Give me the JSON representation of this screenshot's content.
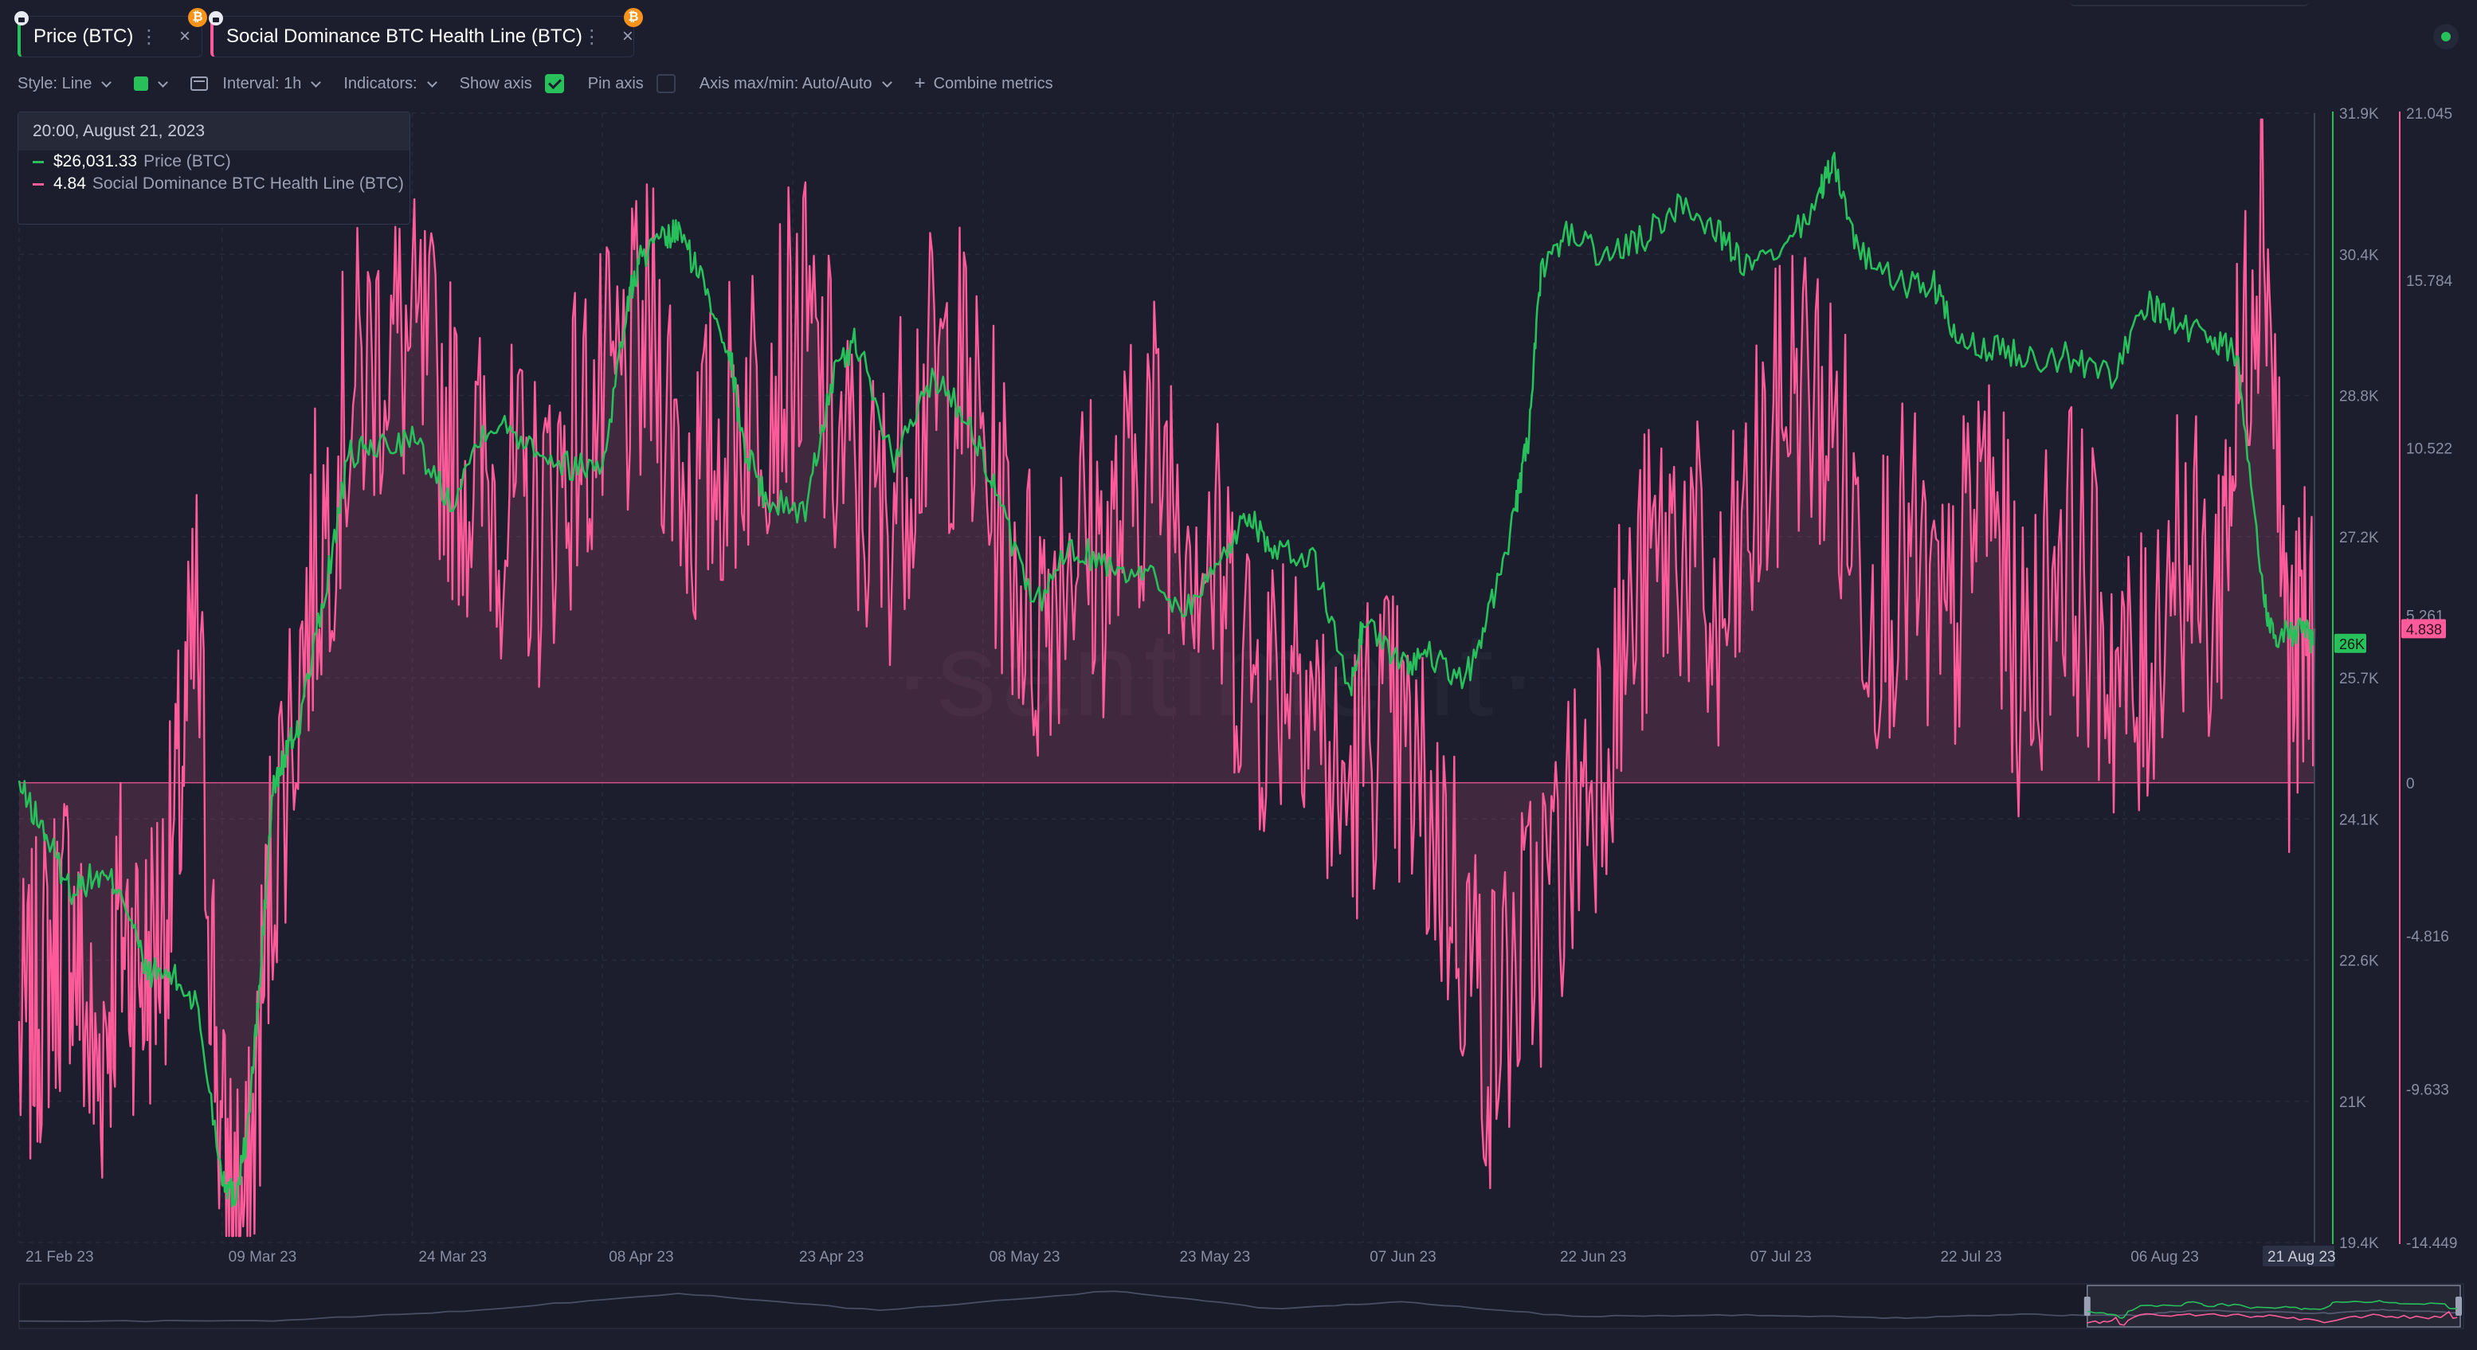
{
  "tabs": [
    {
      "label": "Price (BTC)",
      "color": "#27c05b",
      "badge": "₿",
      "more_icon": "more-vertical-icon",
      "close_icon": "close-icon"
    },
    {
      "label": "Social Dominance BTC Health Line (BTC)",
      "color": "#ff5b9b",
      "badge": "₿",
      "more_icon": "more-vertical-icon",
      "close_icon": "close-icon"
    }
  ],
  "settings": {
    "style": "Style: Line",
    "interval": "Interval: 1h",
    "indicators": "Indicators:",
    "show_axis": "Show axis",
    "show_axis_checked": true,
    "pin_axis": "Pin axis",
    "pin_axis_checked": false,
    "axis_maxmin": "Axis max/min: Auto/Auto",
    "combine": "Combine metrics"
  },
  "tooltip": {
    "datetime": "20:00, August 21, 2023",
    "rows": [
      {
        "value": "$26,031.33",
        "name": "Price (BTC)",
        "color": "#27c05b"
      },
      {
        "value": "4.84",
        "name": "Social Dominance BTC Health Line (BTC)",
        "color": "#ff5b9b"
      }
    ]
  },
  "watermark": "·santiment·",
  "chart_data": {
    "type": "line",
    "x_ticks": [
      "21 Feb 23",
      "09 Mar 23",
      "24 Mar 23",
      "08 Apr 23",
      "23 Apr 23",
      "08 May 23",
      "23 May 23",
      "07 Jun 23",
      "22 Jun 23",
      "07 Jul 23",
      "22 Jul 23",
      "06 Aug 23"
    ],
    "x_end_label": "21 Aug 23",
    "series": [
      {
        "name": "Price (BTC)",
        "color": "#27c05b",
        "axis_ticks": [
          "31.9K",
          "30.4K",
          "28.8K",
          "27.2K",
          "25.7K",
          "24.1K",
          "22.6K",
          "21K",
          "19.4K"
        ],
        "ylim": [
          19400,
          31900
        ],
        "current_label": "26K",
        "x": [
          "2023-02-21",
          "2023-02-23",
          "2023-02-25",
          "2023-02-27",
          "2023-03-01",
          "2023-03-03",
          "2023-03-05",
          "2023-03-07",
          "2023-03-09",
          "2023-03-10",
          "2023-03-11",
          "2023-03-12",
          "2023-03-13",
          "2023-03-14",
          "2023-03-15",
          "2023-03-17",
          "2023-03-19",
          "2023-03-21",
          "2023-03-24",
          "2023-03-27",
          "2023-03-30",
          "2023-04-02",
          "2023-04-05",
          "2023-04-08",
          "2023-04-10",
          "2023-04-11",
          "2023-04-13",
          "2023-04-14",
          "2023-04-16",
          "2023-04-18",
          "2023-04-19",
          "2023-04-21",
          "2023-04-24",
          "2023-04-26",
          "2023-04-28",
          "2023-05-01",
          "2023-05-04",
          "2023-05-07",
          "2023-05-09",
          "2023-05-12",
          "2023-05-15",
          "2023-05-18",
          "2023-05-21",
          "2023-05-24",
          "2023-05-27",
          "2023-05-29",
          "2023-05-31",
          "2023-06-03",
          "2023-06-06",
          "2023-06-07",
          "2023-06-10",
          "2023-06-12",
          "2023-06-15",
          "2023-06-17",
          "2023-06-19",
          "2023-06-20",
          "2023-06-21",
          "2023-06-23",
          "2023-06-26",
          "2023-06-29",
          "2023-07-02",
          "2023-07-05",
          "2023-07-07",
          "2023-07-10",
          "2023-07-13",
          "2023-07-14",
          "2023-07-16",
          "2023-07-19",
          "2023-07-22",
          "2023-07-24",
          "2023-07-27",
          "2023-07-30",
          "2023-08-02",
          "2023-08-05",
          "2023-08-08",
          "2023-08-10",
          "2023-08-13",
          "2023-08-15",
          "2023-08-17",
          "2023-08-18",
          "2023-08-20",
          "2023-08-21"
        ],
        "y": [
          24450,
          23950,
          23300,
          23450,
          23350,
          22400,
          22350,
          22050,
          20150,
          19900,
          20600,
          22300,
          24400,
          24800,
          25100,
          26500,
          28100,
          28200,
          28300,
          27600,
          28500,
          28300,
          28000,
          28000,
          29800,
          30300,
          30500,
          30600,
          30000,
          29300,
          28300,
          27600,
          27500,
          28900,
          29400,
          28000,
          29000,
          28500,
          27700,
          26400,
          27100,
          26900,
          26800,
          26400,
          27000,
          27500,
          27000,
          27000,
          25500,
          26300,
          25800,
          25900,
          25600,
          26400,
          27500,
          28300,
          30100,
          30600,
          30300,
          30500,
          30900,
          30600,
          30200,
          30300,
          31000,
          31400,
          30400,
          30000,
          30000,
          29300,
          29300,
          29200,
          29200,
          29000,
          29800,
          29600,
          29400,
          29200,
          26500,
          26100,
          26200,
          26031
        ]
      },
      {
        "name": "Social Dominance BTC Health Line (BTC)",
        "color": "#ff5b9b",
        "axis_ticks": [
          "21.045",
          "15.784",
          "10.522",
          "5.261",
          "0",
          "-4.816",
          "-9.633",
          "-14.449"
        ],
        "ylim": [
          -14.449,
          21.045
        ],
        "current_label": "4.838",
        "x": [
          "2023-02-21",
          "2023-02-23",
          "2023-02-25",
          "2023-02-27",
          "2023-03-01",
          "2023-03-03",
          "2023-03-05",
          "2023-03-07",
          "2023-03-09",
          "2023-03-11",
          "2023-03-13",
          "2023-03-16",
          "2023-03-19",
          "2023-03-22",
          "2023-03-25",
          "2023-03-28",
          "2023-03-31",
          "2023-04-03",
          "2023-04-06",
          "2023-04-09",
          "2023-04-12",
          "2023-04-15",
          "2023-04-18",
          "2023-04-21",
          "2023-04-24",
          "2023-04-27",
          "2023-04-30",
          "2023-05-03",
          "2023-05-06",
          "2023-05-09",
          "2023-05-12",
          "2023-05-15",
          "2023-05-18",
          "2023-05-21",
          "2023-05-24",
          "2023-05-27",
          "2023-05-30",
          "2023-06-02",
          "2023-06-05",
          "2023-06-08",
          "2023-06-11",
          "2023-06-14",
          "2023-06-17",
          "2023-06-20",
          "2023-06-23",
          "2023-06-26",
          "2023-06-29",
          "2023-07-02",
          "2023-07-05",
          "2023-07-08",
          "2023-07-11",
          "2023-07-14",
          "2023-07-17",
          "2023-07-20",
          "2023-07-23",
          "2023-07-26",
          "2023-07-29",
          "2023-08-01",
          "2023-08-04",
          "2023-08-07",
          "2023-08-10",
          "2023-08-13",
          "2023-08-15",
          "2023-08-17",
          "2023-08-19",
          "2023-08-21"
        ],
        "y": [
          -8.5,
          -6.0,
          -4.0,
          -9.5,
          -4.5,
          -6.0,
          -3.0,
          5.0,
          -12.0,
          -14.0,
          -2.0,
          6.0,
          12.0,
          14.0,
          13.0,
          10.0,
          9.0,
          8.0,
          11.0,
          12.0,
          14.0,
          9.0,
          11.0,
          13.0,
          14.0,
          10.0,
          8.0,
          12.0,
          13.0,
          9.0,
          5.0,
          8.0,
          7.0,
          11.0,
          9.0,
          6.0,
          3.0,
          5.0,
          -1.0,
          2.0,
          0.0,
          -3.0,
          -8.0,
          -5.0,
          -2.0,
          2.0,
          6.0,
          8.0,
          4.0,
          9.0,
          13.0,
          11.0,
          6.0,
          7.0,
          4.0,
          10.0,
          3.0,
          8.0,
          5.0,
          2.0,
          8.0,
          5.0,
          12.0,
          19.0,
          3.0,
          4.84
        ]
      }
    ],
    "grid": true,
    "zero_line": true
  }
}
